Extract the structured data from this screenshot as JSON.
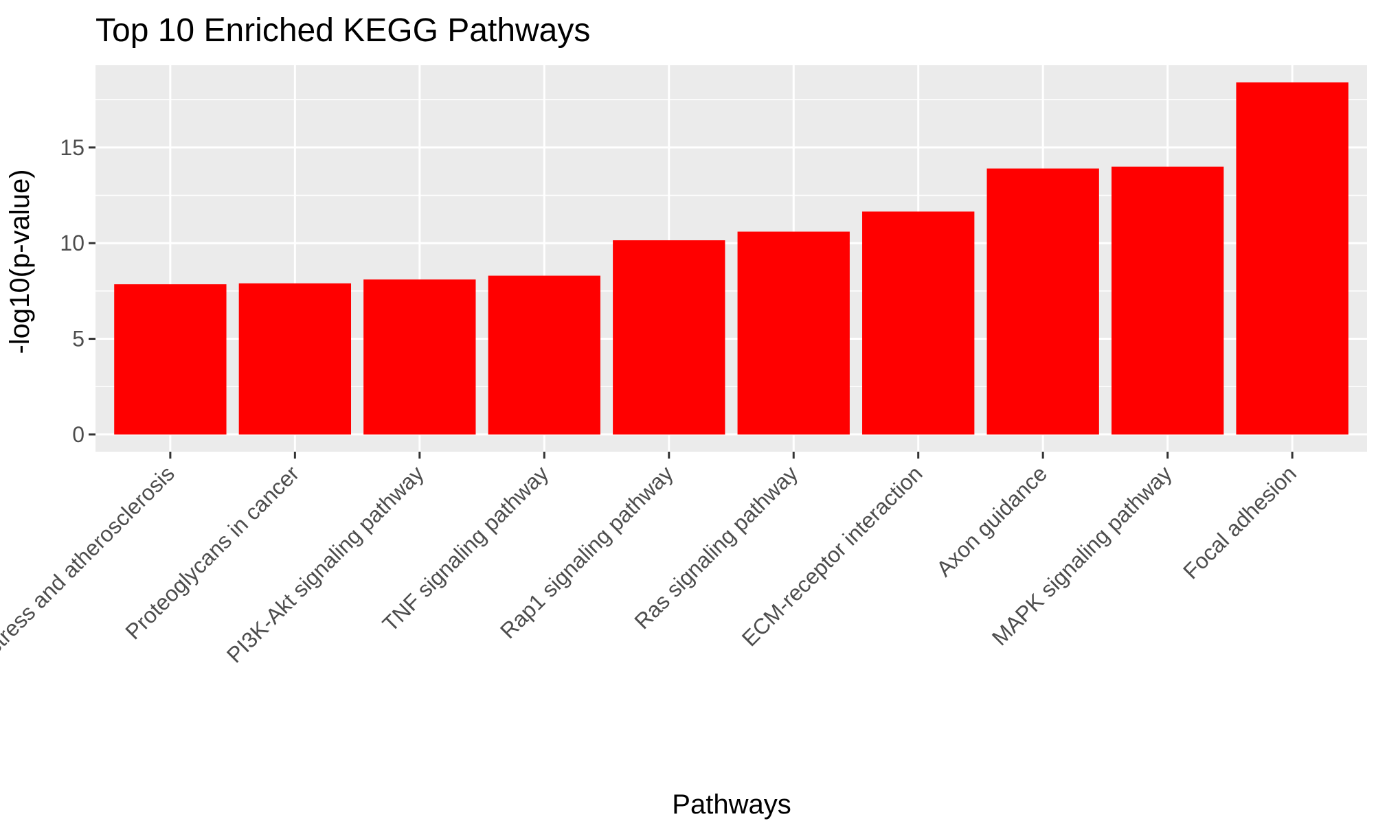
{
  "chart_data": {
    "type": "bar",
    "title": "Top 10 Enriched KEGG Pathways",
    "xlabel": "Pathways",
    "ylabel": "-log10(p-value)",
    "categories": [
      "Fluid shear stress and atherosclerosis",
      "Proteoglycans in cancer",
      "PI3K-Akt signaling pathway",
      "TNF signaling pathway",
      "Rap1 signaling pathway",
      "Ras signaling pathway",
      "ECM-receptor interaction",
      "Axon guidance",
      "MAPK signaling pathway",
      "Focal adhesion"
    ],
    "values": [
      7.85,
      7.9,
      8.1,
      8.3,
      10.15,
      10.6,
      11.65,
      13.9,
      14.0,
      18.4
    ],
    "ylim": [
      -0.9,
      19.3
    ],
    "yticks": [
      0,
      5,
      10,
      15
    ],
    "yticklabels": [
      "0",
      "5",
      "10",
      "15"
    ],
    "grid": true,
    "colors": {
      "bar": "#ff0000",
      "panel": "#ebebeb",
      "grid": "#ffffff",
      "tick_text": "#4d4d4d",
      "tick_mark": "#333333"
    }
  }
}
